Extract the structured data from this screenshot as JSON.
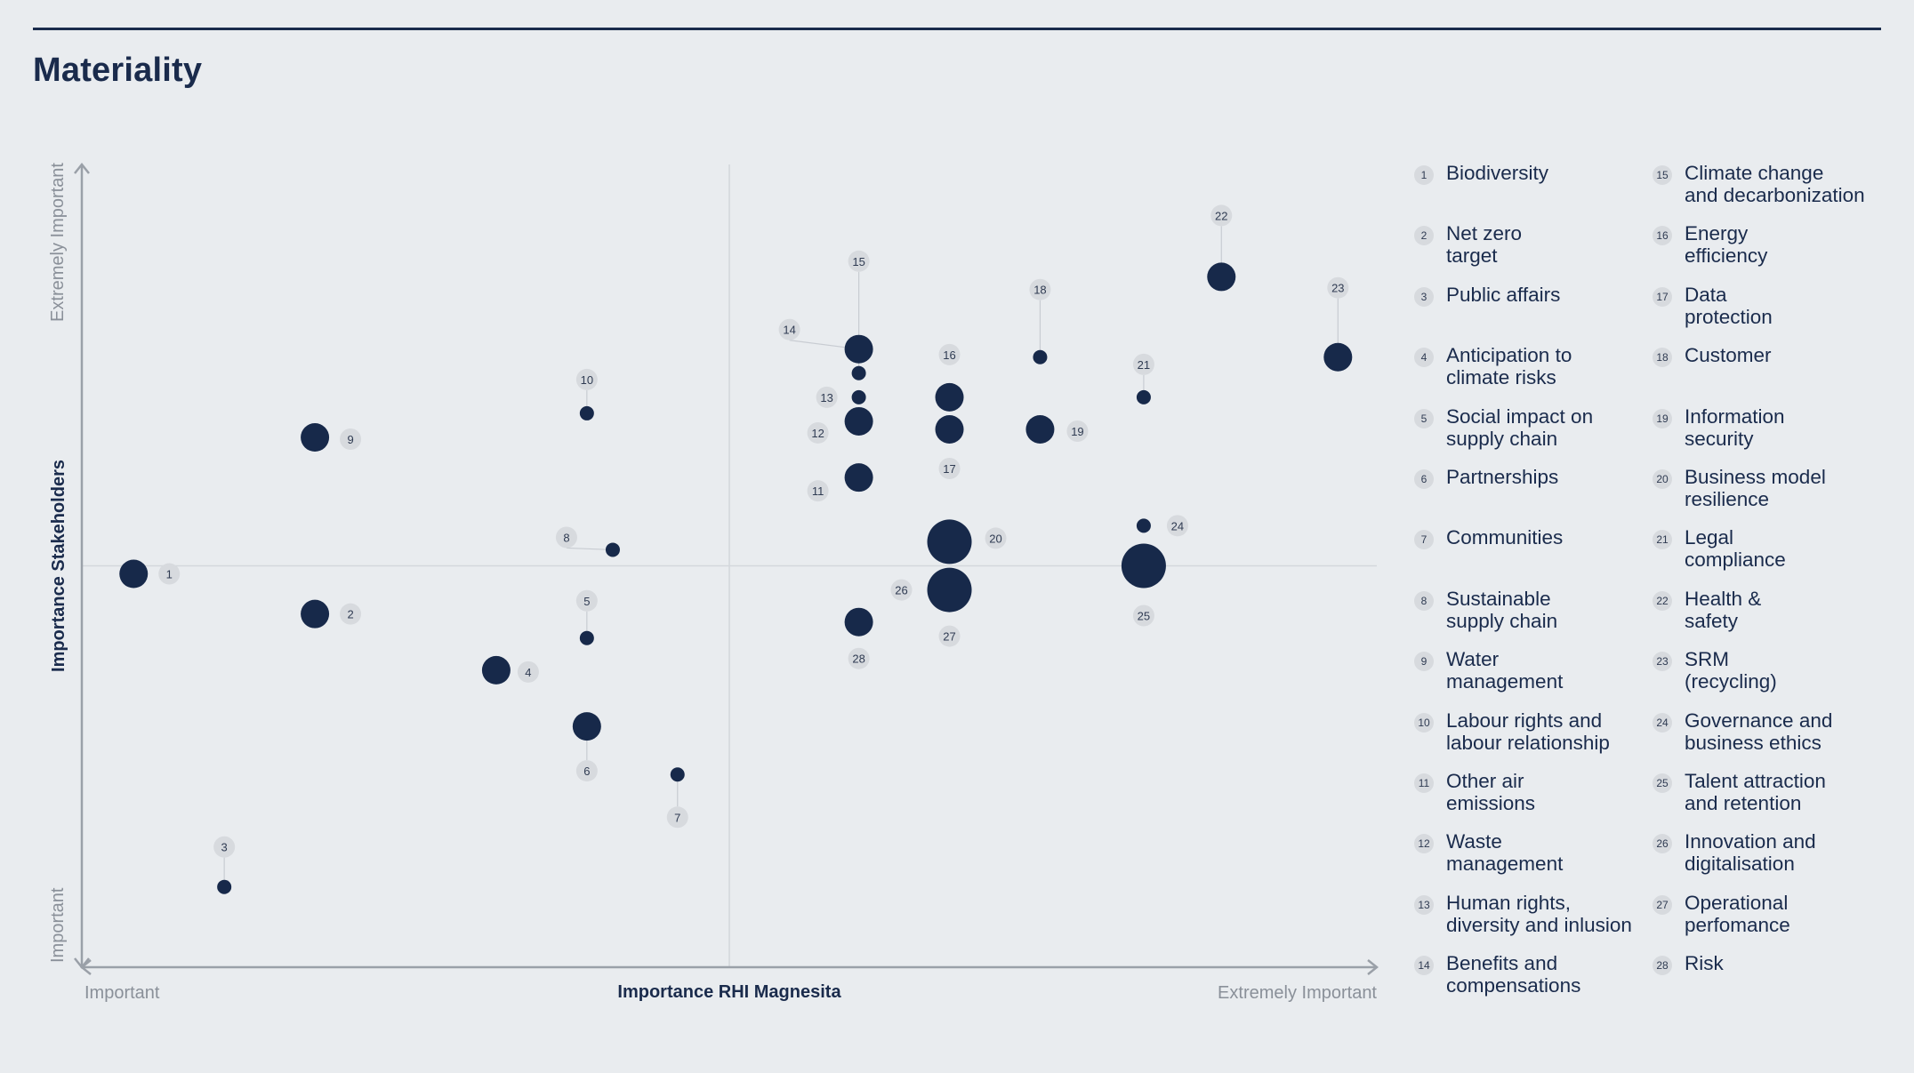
{
  "page": {
    "title": "Materiality"
  },
  "colors": {
    "accent": "#1a2b4c",
    "bubble": "#17294a",
    "badge": "#d7dade",
    "axis": "#9aa0a8",
    "background": "#e9ecef"
  },
  "chart_data": {
    "type": "scatter",
    "title": "Materiality",
    "xlabel": "Importance RHI Magnesita",
    "ylabel": "Importance Stakeholders",
    "x_ticks": {
      "low": "Important",
      "high": "Extremely Important"
    },
    "y_ticks": {
      "low": "Important",
      "high": "Extremely Important"
    },
    "xlim": [
      0,
      100
    ],
    "ylim": [
      0,
      100
    ],
    "grid": "quadrant lines at midpoint",
    "legend_placement": "right",
    "points": [
      {
        "id": 1,
        "label": "Biodiversity",
        "x": 4,
        "y": 49,
        "size": 3
      },
      {
        "id": 2,
        "label": "Net zero target",
        "x": 18,
        "y": 44,
        "size": 3
      },
      {
        "id": 3,
        "label": "Public affairs",
        "x": 11,
        "y": 10,
        "size": 1
      },
      {
        "id": 4,
        "label": "Anticipation to climate risks",
        "x": 32,
        "y": 37,
        "size": 3
      },
      {
        "id": 5,
        "label": "Social impact on supply chain",
        "x": 39,
        "y": 41,
        "size": 1
      },
      {
        "id": 6,
        "label": "Partnerships",
        "x": 39,
        "y": 30,
        "size": 3
      },
      {
        "id": 7,
        "label": "Communities",
        "x": 46,
        "y": 24,
        "size": 1
      },
      {
        "id": 8,
        "label": "Sustainable supply chain",
        "x": 41,
        "y": 52,
        "size": 1
      },
      {
        "id": 9,
        "label": "Water management",
        "x": 18,
        "y": 66,
        "size": 3
      },
      {
        "id": 10,
        "label": "Labour rights and labour relationship",
        "x": 39,
        "y": 69,
        "size": 1
      },
      {
        "id": 11,
        "label": "Other air emissions",
        "x": 60,
        "y": 61,
        "size": 3
      },
      {
        "id": 12,
        "label": "Waste management",
        "x": 60,
        "y": 68,
        "size": 3
      },
      {
        "id": 13,
        "label": "Human rights, diversity and inlusion",
        "x": 60,
        "y": 71,
        "size": 1
      },
      {
        "id": 14,
        "label": "Benefits and compensations",
        "x": 60,
        "y": 77,
        "size": 3
      },
      {
        "id": 15,
        "label": "Climate change and decarbonization",
        "x": 60,
        "y": 74,
        "size": 1
      },
      {
        "id": 16,
        "label": "Energy efficiency",
        "x": 67,
        "y": 71,
        "size": 3
      },
      {
        "id": 17,
        "label": "Data protection",
        "x": 67,
        "y": 67,
        "size": 3
      },
      {
        "id": 18,
        "label": "Customer",
        "x": 74,
        "y": 76,
        "size": 1
      },
      {
        "id": 19,
        "label": "Information security",
        "x": 74,
        "y": 67,
        "size": 3
      },
      {
        "id": 20,
        "label": "Business model resilience",
        "x": 67,
        "y": 53,
        "size": 5
      },
      {
        "id": 21,
        "label": "Legal compliance",
        "x": 82,
        "y": 71,
        "size": 1
      },
      {
        "id": 22,
        "label": "Health & safety",
        "x": 88,
        "y": 86,
        "size": 3
      },
      {
        "id": 23,
        "label": "SRM (recycling)",
        "x": 97,
        "y": 76,
        "size": 3
      },
      {
        "id": 24,
        "label": "Governance and business ethics",
        "x": 82,
        "y": 55,
        "size": 1
      },
      {
        "id": 25,
        "label": "Talent attraction and retention",
        "x": 82,
        "y": 50,
        "size": 5
      },
      {
        "id": 26,
        "label": "Innovation and digitalisation",
        "x": 67,
        "y": 47,
        "size": 5
      },
      {
        "id": 27,
        "label": "Operational perfomance",
        "x": 67,
        "y": 47,
        "size": 5
      },
      {
        "id": 28,
        "label": "Risk",
        "x": 60,
        "y": 43,
        "size": 3
      }
    ]
  },
  "legend": {
    "items": [
      {
        "num": "1",
        "text": "Biodiversity"
      },
      {
        "num": "2",
        "text": "Net zero\ntarget"
      },
      {
        "num": "3",
        "text": "Public affairs"
      },
      {
        "num": "4",
        "text": "Anticipation to\nclimate risks"
      },
      {
        "num": "5",
        "text": "Social impact on\nsupply chain"
      },
      {
        "num": "6",
        "text": "Partnerships"
      },
      {
        "num": "7",
        "text": "Communities"
      },
      {
        "num": "8",
        "text": "Sustainable\nsupply chain"
      },
      {
        "num": "9",
        "text": "Water\nmanagement"
      },
      {
        "num": "10",
        "text": "Labour rights and\nlabour relationship"
      },
      {
        "num": "11",
        "text": "Other air\nemissions"
      },
      {
        "num": "12",
        "text": "Waste\nmanagement"
      },
      {
        "num": "13",
        "text": "Human rights,\ndiversity and inlusion"
      },
      {
        "num": "14",
        "text": "Benefits and\ncompensations"
      },
      {
        "num": "15",
        "text": "Climate change\nand decarbonization"
      },
      {
        "num": "16",
        "text": "Energy\nefficiency"
      },
      {
        "num": "17",
        "text": "Data\nprotection"
      },
      {
        "num": "18",
        "text": "Customer"
      },
      {
        "num": "19",
        "text": "Information\nsecurity"
      },
      {
        "num": "20",
        "text": "Business model\nresilience"
      },
      {
        "num": "21",
        "text": "Legal\ncompliance"
      },
      {
        "num": "22",
        "text": "Health &\nsafety"
      },
      {
        "num": "23",
        "text": "SRM\n(recycling)"
      },
      {
        "num": "24",
        "text": "Governance and\nbusiness ethics"
      },
      {
        "num": "25",
        "text": "Talent attraction\nand retention"
      },
      {
        "num": "26",
        "text": "Innovation and\ndigitalisation"
      },
      {
        "num": "27",
        "text": "Operational\nperfomance"
      },
      {
        "num": "28",
        "text": "Risk"
      }
    ]
  }
}
